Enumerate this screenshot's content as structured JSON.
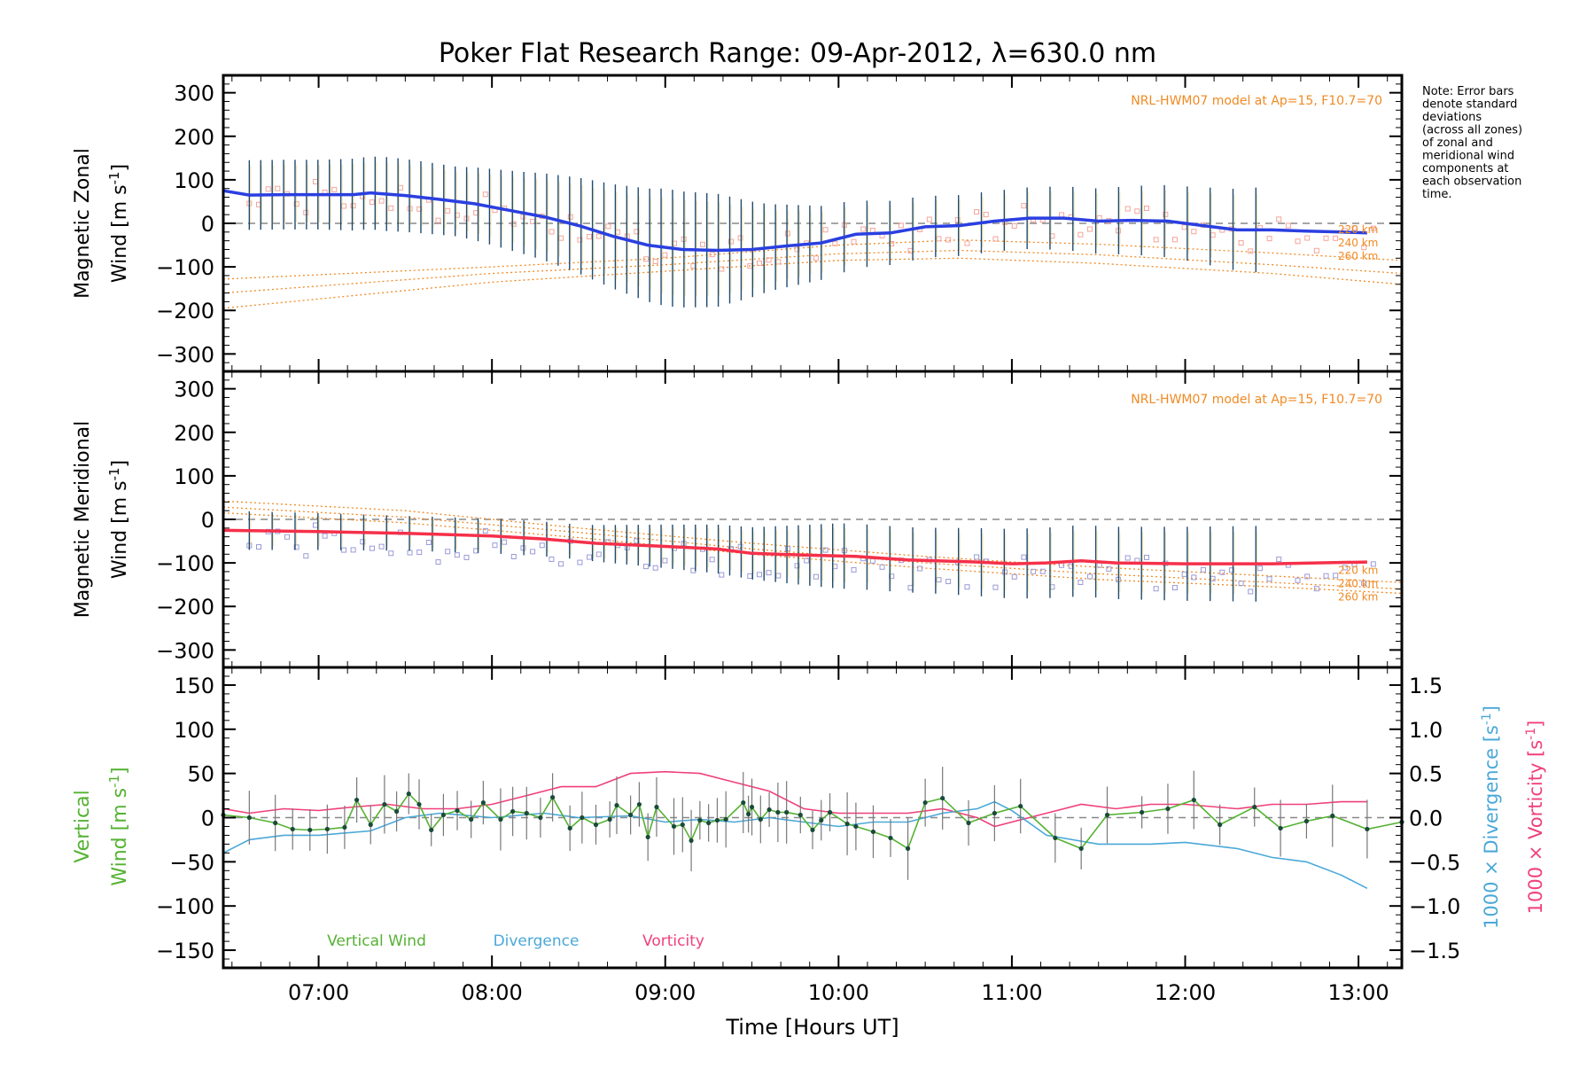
{
  "title": "Poker Flat Research Range: 09-Apr-2012, λ=630.0 nm",
  "note": [
    "Note: Error bars",
    "denote standard",
    "deviations",
    "(across all zones)",
    "of zonal and",
    "meridional wind",
    "components at",
    "each observation",
    "time."
  ],
  "xlabel": "Time [Hours UT]",
  "colors": {
    "zonal": "#2a3fe0",
    "meridional": "#f5304a",
    "model": "#f08a24",
    "vertical": "#55b233",
    "divergence": "#4aa8d8",
    "vorticity": "#f0407a",
    "errorbar": "#1f4a6e",
    "zonal_points": "#f4a49a",
    "meridional_points": "#9a9ad8"
  },
  "chart_data": [
    {
      "type": "line",
      "name": "zonal-panel",
      "ylabel_line1": "Magnetic Zonal",
      "ylabel_line2": "Wind [m s",
      "ylabel_sup": "-1",
      "ylabel_close": "]",
      "model_label": "NRL-HWM07 model at Ap=15, F10.7=70",
      "altitude_labels": [
        "220 km",
        "240 km",
        "260 km"
      ],
      "xlim": [
        6.45,
        13.25
      ],
      "ylim": [
        -340,
        340
      ],
      "yticks": [
        300,
        200,
        100,
        0,
        -100,
        -200,
        -300
      ],
      "ytick_labels": [
        "300",
        "200",
        "100",
        "0",
        "−100",
        "−200",
        "−300"
      ],
      "wind_points": [
        [
          6.45,
          75
        ],
        [
          6.6,
          65
        ],
        [
          6.8,
          66
        ],
        [
          7.0,
          66
        ],
        [
          7.2,
          66
        ],
        [
          7.3,
          70
        ],
        [
          7.5,
          64
        ],
        [
          7.7,
          55
        ],
        [
          7.9,
          45
        ],
        [
          8.1,
          30
        ],
        [
          8.3,
          15
        ],
        [
          8.5,
          -5
        ],
        [
          8.7,
          -30
        ],
        [
          8.9,
          -50
        ],
        [
          9.1,
          -60
        ],
        [
          9.3,
          -62
        ],
        [
          9.5,
          -60
        ],
        [
          9.7,
          -52
        ],
        [
          9.9,
          -45
        ],
        [
          10.1,
          -25
        ],
        [
          10.3,
          -22
        ],
        [
          10.5,
          -8
        ],
        [
          10.7,
          -5
        ],
        [
          10.9,
          5
        ],
        [
          11.1,
          12
        ],
        [
          11.3,
          12
        ],
        [
          11.5,
          5
        ],
        [
          11.7,
          7
        ],
        [
          11.9,
          5
        ],
        [
          12.1,
          -5
        ],
        [
          12.3,
          -15
        ],
        [
          12.5,
          -15
        ],
        [
          12.7,
          -18
        ],
        [
          12.9,
          -20
        ],
        [
          13.05,
          -22
        ]
      ],
      "error_halfwidth": [
        [
          6.45,
          80
        ],
        [
          7.0,
          80
        ],
        [
          7.4,
          85
        ],
        [
          7.8,
          80
        ],
        [
          8.2,
          95
        ],
        [
          8.6,
          115
        ],
        [
          9.0,
          135
        ],
        [
          9.3,
          130
        ],
        [
          9.6,
          100
        ],
        [
          9.9,
          85
        ],
        [
          10.2,
          75
        ],
        [
          10.6,
          70
        ],
        [
          11.0,
          70
        ],
        [
          11.5,
          75
        ],
        [
          12.0,
          85
        ],
        [
          12.5,
          100
        ],
        [
          13.05,
          115
        ]
      ],
      "model_curves": [
        {
          "altitude": "220 km",
          "points": [
            [
              6.45,
              -128
            ],
            [
              8.0,
              -100
            ],
            [
              9.0,
              -80
            ],
            [
              10.0,
              -50
            ],
            [
              10.7,
              -38
            ],
            [
              11.5,
              -48
            ],
            [
              12.5,
              -68
            ],
            [
              13.25,
              -85
            ]
          ]
        },
        {
          "altitude": "240 km",
          "points": [
            [
              6.45,
              -160
            ],
            [
              8.0,
              -115
            ],
            [
              9.0,
              -95
            ],
            [
              10.0,
              -70
            ],
            [
              10.7,
              -62
            ],
            [
              11.5,
              -72
            ],
            [
              12.5,
              -95
            ],
            [
              13.25,
              -115
            ]
          ]
        },
        {
          "altitude": "260 km",
          "points": [
            [
              6.45,
              -195
            ],
            [
              8.0,
              -135
            ],
            [
              9.0,
              -110
            ],
            [
              10.0,
              -85
            ],
            [
              10.7,
              -80
            ],
            [
              11.5,
              -92
            ],
            [
              12.5,
              -115
            ],
            [
              13.25,
              -140
            ]
          ]
        }
      ]
    },
    {
      "type": "line",
      "name": "meridional-panel",
      "ylabel_line1": "Magnetic Meridional",
      "ylabel_line2": "Wind [m s",
      "ylabel_sup": "-1",
      "ylabel_close": "]",
      "model_label": "NRL-HWM07 model at Ap=15, F10.7=70",
      "altitude_labels": [
        "220 km",
        "240 km",
        "260 km"
      ],
      "xlim": [
        6.45,
        13.25
      ],
      "ylim": [
        -340,
        340
      ],
      "yticks": [
        300,
        200,
        100,
        0,
        -100,
        -200,
        -300
      ],
      "ytick_labels": [
        "300",
        "200",
        "100",
        "0",
        "−100",
        "−200",
        "−300"
      ],
      "wind_points": [
        [
          6.45,
          -25
        ],
        [
          7.0,
          -28
        ],
        [
          7.5,
          -32
        ],
        [
          8.0,
          -38
        ],
        [
          8.3,
          -45
        ],
        [
          8.6,
          -55
        ],
        [
          9.0,
          -62
        ],
        [
          9.3,
          -68
        ],
        [
          9.5,
          -78
        ],
        [
          9.8,
          -82
        ],
        [
          10.1,
          -85
        ],
        [
          10.4,
          -93
        ],
        [
          10.8,
          -98
        ],
        [
          11.0,
          -102
        ],
        [
          11.2,
          -100
        ],
        [
          11.4,
          -95
        ],
        [
          11.6,
          -100
        ],
        [
          12.0,
          -102
        ],
        [
          12.5,
          -102
        ],
        [
          13.05,
          -98
        ]
      ],
      "error_halfwidth": [
        [
          6.45,
          45
        ],
        [
          7.5,
          40
        ],
        [
          8.5,
          40
        ],
        [
          9.0,
          50
        ],
        [
          9.5,
          60
        ],
        [
          10.0,
          75
        ],
        [
          10.5,
          75
        ],
        [
          11.0,
          80
        ],
        [
          12.0,
          85
        ],
        [
          13.05,
          90
        ]
      ],
      "model_curves": [
        {
          "altitude": "220 km",
          "points": [
            [
              6.45,
              42
            ],
            [
              7.5,
              20
            ],
            [
              8.5,
              -20
            ],
            [
              9.5,
              -55
            ],
            [
              10.5,
              -85
            ],
            [
              11.5,
              -110
            ],
            [
              12.5,
              -130
            ],
            [
              13.25,
              -145
            ]
          ]
        },
        {
          "altitude": "240 km",
          "points": [
            [
              6.45,
              28
            ],
            [
              7.5,
              5
            ],
            [
              8.5,
              -30
            ],
            [
              9.5,
              -68
            ],
            [
              10.5,
              -100
            ],
            [
              11.5,
              -125
            ],
            [
              12.5,
              -145
            ],
            [
              13.25,
              -160
            ]
          ]
        },
        {
          "altitude": "260 km",
          "points": [
            [
              6.45,
              15
            ],
            [
              7.5,
              -8
            ],
            [
              8.5,
              -42
            ],
            [
              9.5,
              -80
            ],
            [
              10.5,
              -112
            ],
            [
              11.5,
              -138
            ],
            [
              12.5,
              -155
            ],
            [
              13.25,
              -170
            ]
          ]
        }
      ]
    },
    {
      "type": "line",
      "name": "vertical-panel",
      "ylabel_line1": "Vertical",
      "ylabel_line2_pre": "Wind ",
      "ylabel_line2_units": "[m s",
      "ylabel_sup": "-1",
      "ylabel_close": "]",
      "right_label_div": "1000 × Divergence [s",
      "right_label_vort": "1000 × Vorticity [s",
      "right_sup": "-1",
      "right_close": "]",
      "xlim": [
        6.45,
        13.25
      ],
      "ylim": [
        -170,
        170
      ],
      "yticks": [
        150,
        100,
        50,
        0,
        -50,
        -100,
        -150
      ],
      "ytick_labels": [
        "150",
        "100",
        "50",
        "0",
        "−50",
        "−100",
        "−150"
      ],
      "y2lim": [
        -1.7,
        1.7
      ],
      "y2ticks": [
        1.5,
        1.0,
        0.5,
        0.0,
        -0.5,
        -1.0,
        -1.5
      ],
      "y2tick_labels": [
        "1.5",
        "1.0",
        "0.5",
        "0.0",
        "−0.5",
        "−1.0",
        "−1.5"
      ],
      "legend": [
        "Vertical Wind",
        "Divergence",
        "Vorticity"
      ],
      "vertical_wind": [
        [
          6.45,
          3
        ],
        [
          6.6,
          0
        ],
        [
          6.75,
          -6
        ],
        [
          6.85,
          -13
        ],
        [
          6.95,
          -14
        ],
        [
          7.05,
          -13
        ],
        [
          7.15,
          -11
        ],
        [
          7.22,
          20
        ],
        [
          7.3,
          -8
        ],
        [
          7.38,
          15
        ],
        [
          7.45,
          7
        ],
        [
          7.52,
          27
        ],
        [
          7.58,
          15
        ],
        [
          7.65,
          -14
        ],
        [
          7.72,
          3
        ],
        [
          7.8,
          8
        ],
        [
          7.88,
          -2
        ],
        [
          7.95,
          17
        ],
        [
          8.05,
          -2
        ],
        [
          8.12,
          7
        ],
        [
          8.2,
          5
        ],
        [
          8.28,
          0
        ],
        [
          8.35,
          23
        ],
        [
          8.45,
          -12
        ],
        [
          8.52,
          0
        ],
        [
          8.6,
          -8
        ],
        [
          8.68,
          -2
        ],
        [
          8.72,
          14
        ],
        [
          8.8,
          3
        ],
        [
          8.85,
          15
        ],
        [
          8.9,
          -22
        ],
        [
          8.95,
          12
        ],
        [
          9.05,
          -10
        ],
        [
          9.1,
          -8
        ],
        [
          9.15,
          -26
        ],
        [
          9.2,
          -3
        ],
        [
          9.25,
          -6
        ],
        [
          9.3,
          -3
        ],
        [
          9.35,
          -2
        ],
        [
          9.45,
          17
        ],
        [
          9.48,
          4
        ],
        [
          9.5,
          12
        ],
        [
          9.55,
          -2
        ],
        [
          9.6,
          9
        ],
        [
          9.65,
          6
        ],
        [
          9.7,
          6
        ],
        [
          9.78,
          3
        ],
        [
          9.85,
          -14
        ],
        [
          9.9,
          -3
        ],
        [
          9.95,
          6
        ],
        [
          10.05,
          -7
        ],
        [
          10.1,
          -10
        ],
        [
          10.2,
          -16
        ],
        [
          10.3,
          -23
        ],
        [
          10.4,
          -35
        ],
        [
          10.5,
          17
        ],
        [
          10.6,
          22
        ],
        [
          10.75,
          -6
        ],
        [
          10.9,
          5
        ],
        [
          11.05,
          13
        ],
        [
          11.25,
          -23
        ],
        [
          11.4,
          -35
        ],
        [
          11.55,
          3
        ],
        [
          11.75,
          6
        ],
        [
          11.9,
          10
        ],
        [
          12.05,
          20
        ],
        [
          12.2,
          -8
        ],
        [
          12.4,
          12
        ],
        [
          12.55,
          -12
        ],
        [
          12.7,
          -4
        ],
        [
          12.85,
          2
        ],
        [
          13.05,
          -13
        ],
        [
          13.25,
          -5
        ]
      ],
      "divergence": [
        [
          6.45,
          -0.4
        ],
        [
          6.6,
          -0.25
        ],
        [
          6.8,
          -0.2
        ],
        [
          7.0,
          -0.2
        ],
        [
          7.3,
          -0.15
        ],
        [
          7.5,
          0.0
        ],
        [
          7.7,
          0.05
        ],
        [
          8.0,
          0.0
        ],
        [
          8.3,
          0.05
        ],
        [
          8.5,
          0.0
        ],
        [
          8.8,
          0.02
        ],
        [
          9.0,
          -0.05
        ],
        [
          9.2,
          -0.02
        ],
        [
          9.4,
          -0.05
        ],
        [
          9.6,
          0.0
        ],
        [
          9.8,
          -0.05
        ],
        [
          10.0,
          -0.1
        ],
        [
          10.2,
          -0.05
        ],
        [
          10.4,
          -0.05
        ],
        [
          10.6,
          0.05
        ],
        [
          10.8,
          0.1
        ],
        [
          10.9,
          0.18
        ],
        [
          11.0,
          0.08
        ],
        [
          11.2,
          -0.2
        ],
        [
          11.5,
          -0.3
        ],
        [
          11.8,
          -0.3
        ],
        [
          12.0,
          -0.28
        ],
        [
          12.3,
          -0.35
        ],
        [
          12.5,
          -0.45
        ],
        [
          12.7,
          -0.5
        ],
        [
          12.9,
          -0.65
        ],
        [
          13.05,
          -0.8
        ]
      ],
      "vorticity": [
        [
          6.45,
          0.1
        ],
        [
          6.6,
          0.05
        ],
        [
          6.8,
          0.1
        ],
        [
          7.0,
          0.08
        ],
        [
          7.2,
          0.12
        ],
        [
          7.4,
          0.15
        ],
        [
          7.6,
          0.1
        ],
        [
          7.8,
          0.1
        ],
        [
          8.0,
          0.15
        ],
        [
          8.2,
          0.25
        ],
        [
          8.4,
          0.35
        ],
        [
          8.6,
          0.35
        ],
        [
          8.8,
          0.5
        ],
        [
          9.0,
          0.52
        ],
        [
          9.2,
          0.5
        ],
        [
          9.4,
          0.4
        ],
        [
          9.6,
          0.3
        ],
        [
          9.8,
          0.1
        ],
        [
          10.0,
          0.05
        ],
        [
          10.2,
          0.05
        ],
        [
          10.4,
          0.05
        ],
        [
          10.6,
          0.1
        ],
        [
          10.8,
          0.0
        ],
        [
          10.9,
          -0.1
        ],
        [
          11.0,
          -0.05
        ],
        [
          11.2,
          0.05
        ],
        [
          11.4,
          0.15
        ],
        [
          11.6,
          0.1
        ],
        [
          11.8,
          0.15
        ],
        [
          12.0,
          0.15
        ],
        [
          12.3,
          0.1
        ],
        [
          12.5,
          0.15
        ],
        [
          12.7,
          0.15
        ],
        [
          12.9,
          0.18
        ],
        [
          13.05,
          0.18
        ]
      ]
    }
  ],
  "xticks": [
    7,
    8,
    9,
    10,
    11,
    12,
    13
  ],
  "xtick_labels": [
    "07:00",
    "08:00",
    "09:00",
    "10:00",
    "11:00",
    "12:00",
    "13:00"
  ]
}
